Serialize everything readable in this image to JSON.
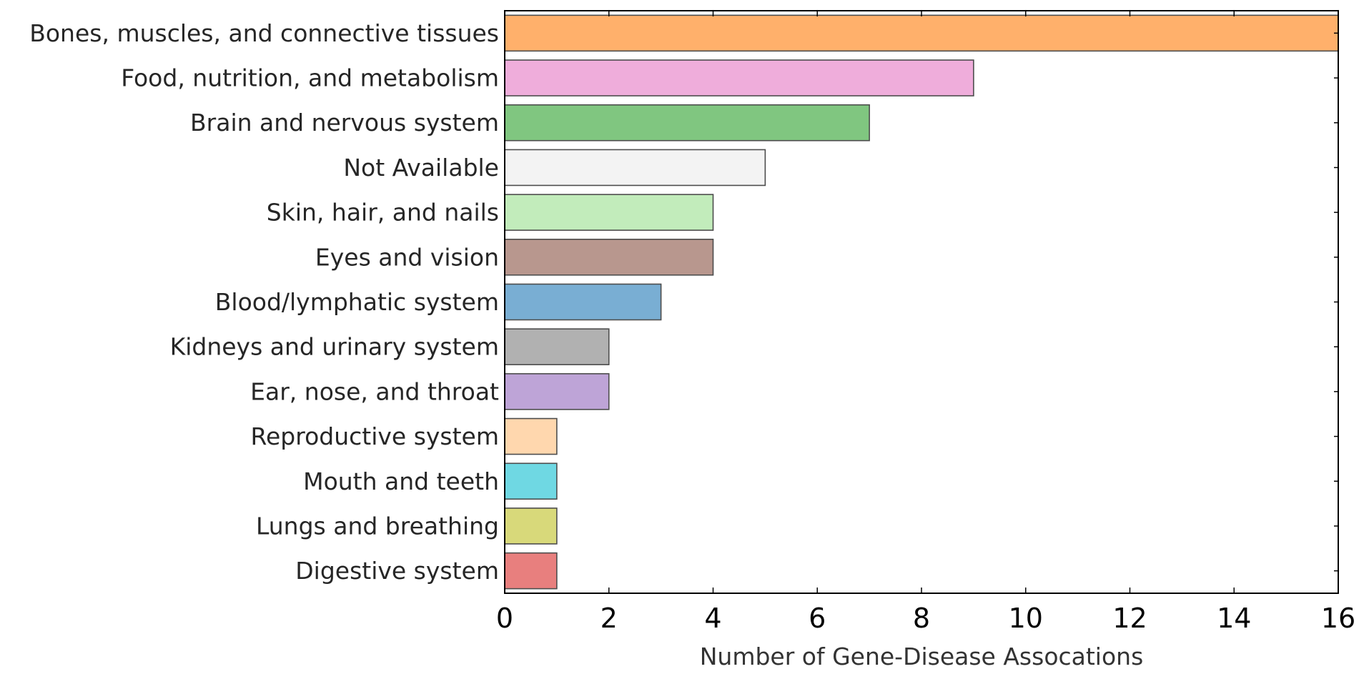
{
  "chart_data": {
    "type": "bar",
    "orientation": "horizontal",
    "categories": [
      "Bones, muscles, and connective tissues",
      "Food, nutrition, and metabolism",
      "Brain and nervous system",
      "Not Available",
      "Skin, hair, and nails",
      "Eyes and vision",
      "Blood/lymphatic system",
      "Kidneys and urinary system",
      "Ear, nose, and throat",
      "Reproductive system",
      "Mouth and teeth",
      "Lungs and breathing",
      "Digestive system"
    ],
    "values": [
      16,
      9,
      7,
      5,
      4,
      4,
      3,
      2,
      2,
      1,
      1,
      1,
      1
    ],
    "colors": [
      "#ffb06b",
      "#efaddb",
      "#80c680",
      "#f3f3f3",
      "#c2ecbb",
      "#b8978e",
      "#79aed3",
      "#b1b1b1",
      "#bea4d7",
      "#ffd7ae",
      "#6fd8e3",
      "#d8d97a",
      "#e87f7e"
    ],
    "title": "",
    "xlabel": "Number of Gene-Disease Assocations",
    "ylabel": "",
    "xlim": [
      0,
      16
    ],
    "xticks": [
      0,
      2,
      4,
      6,
      8,
      10,
      12,
      14,
      16
    ],
    "xtick_labels": [
      "0",
      "2",
      "4",
      "6",
      "8",
      "10",
      "12",
      "14",
      "16"
    ],
    "grid": false,
    "legend": "none"
  }
}
